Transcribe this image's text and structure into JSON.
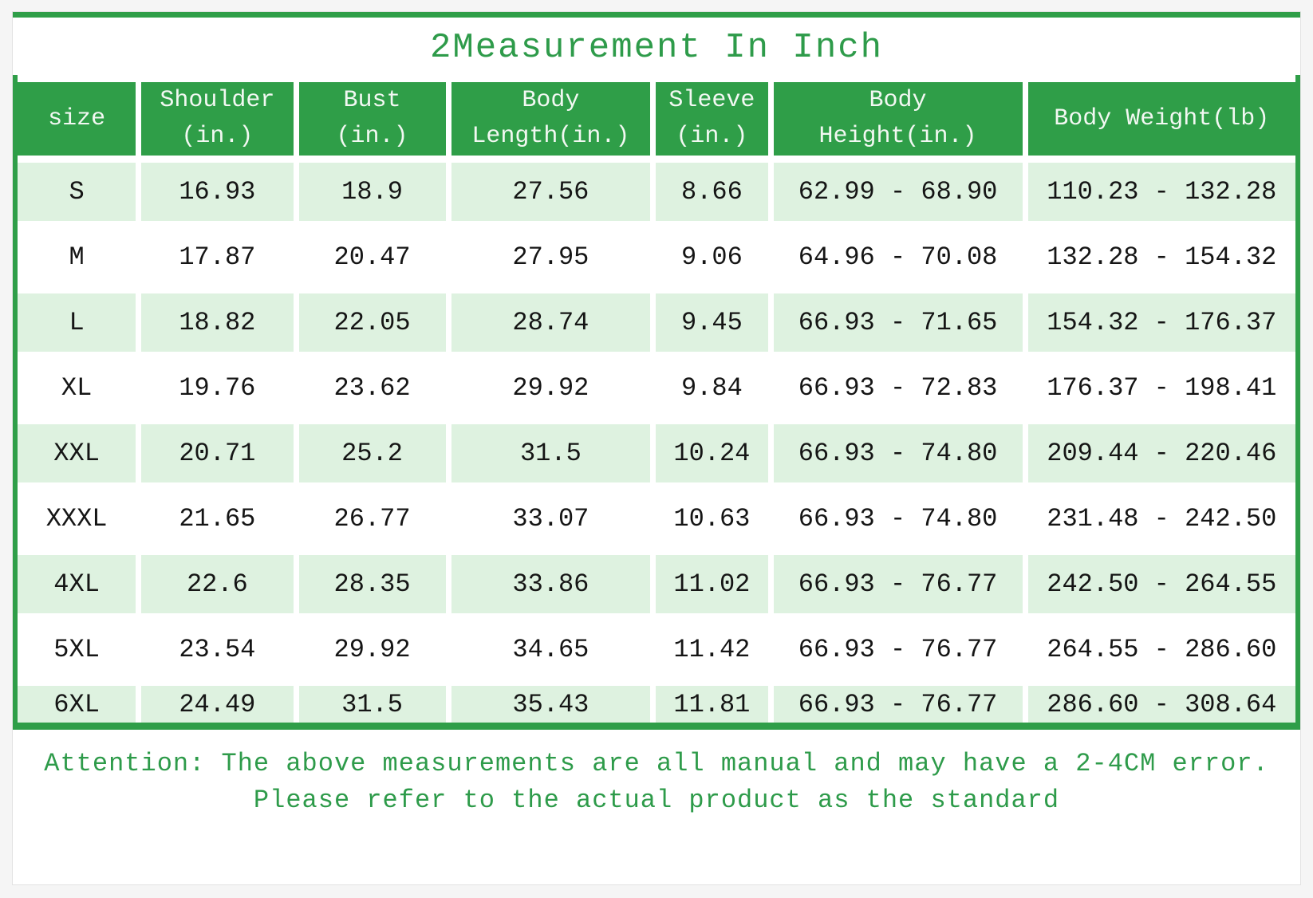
{
  "title": "2Measurement In Inch",
  "chart_data": {
    "type": "table",
    "columns": [
      "size",
      "Shoulder\n(in.)",
      "Bust\n(in.)",
      "Body\nLength(in.)",
      "Sleeve\n(in.)",
      "Body\nHeight(in.)",
      "Body Weight(lb)"
    ],
    "rows": [
      [
        "S",
        "16.93",
        "18.9",
        "27.56",
        "8.66",
        "62.99 - 68.90",
        "110.23 - 132.28"
      ],
      [
        "M",
        "17.87",
        "20.47",
        "27.95",
        "9.06",
        "64.96 - 70.08",
        "132.28 - 154.32"
      ],
      [
        "L",
        "18.82",
        "22.05",
        "28.74",
        "9.45",
        "66.93 - 71.65",
        "154.32 - 176.37"
      ],
      [
        "XL",
        "19.76",
        "23.62",
        "29.92",
        "9.84",
        "66.93 - 72.83",
        "176.37 - 198.41"
      ],
      [
        "XXL",
        "20.71",
        "25.2",
        "31.5",
        "10.24",
        "66.93 - 74.80",
        "209.44 - 220.46"
      ],
      [
        "XXXL",
        "21.65",
        "26.77",
        "33.07",
        "10.63",
        "66.93 - 74.80",
        "231.48 - 242.50"
      ],
      [
        "4XL",
        "22.6",
        "28.35",
        "33.86",
        "11.02",
        "66.93 - 76.77",
        "242.50 - 264.55"
      ],
      [
        "5XL",
        "23.54",
        "29.92",
        "34.65",
        "11.42",
        "66.93 - 76.77",
        "264.55 - 286.60"
      ],
      [
        "6XL",
        "24.49",
        "31.5",
        "35.43",
        "11.81",
        "66.93 - 76.77",
        "286.60 - 308.64"
      ]
    ],
    "highlighted_row_indices": [
      0,
      2,
      4,
      6,
      8
    ],
    "legend_position": "none",
    "grid": "separated-cells"
  },
  "note": {
    "line1": "Attention: The above measurements are all manual and may have a 2-4CM error.",
    "line2": "Please refer to the actual product as the standard"
  },
  "colors": {
    "accent_green": "#2f9e48",
    "row_green": "#def2e0",
    "text_green": "#2e9b4a"
  }
}
